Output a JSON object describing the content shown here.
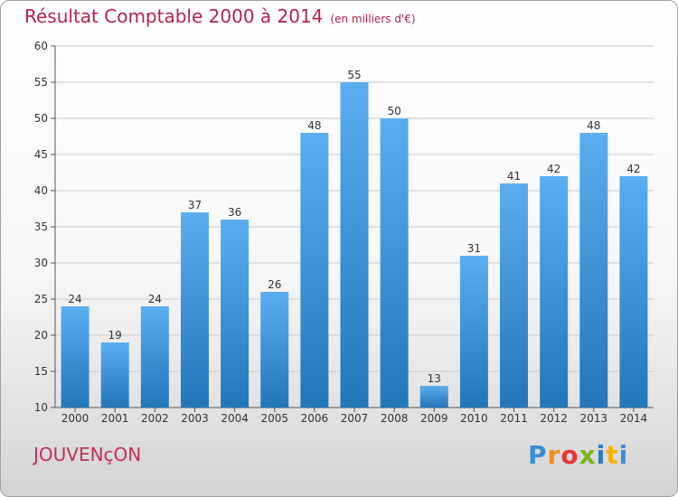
{
  "header": {
    "title": "Résultat Comptable 2000 à 2014",
    "unit": "(en milliers d'€)"
  },
  "commune": "JOUVENçON",
  "logo": {
    "letters": [
      "P",
      "r",
      "o",
      "x",
      "i",
      "t",
      "i"
    ]
  },
  "colors": {
    "title": "#b5224c",
    "bar_top": "#5aaef0",
    "bar_bottom": "#2277b8",
    "grid": "#c8c8c8"
  },
  "chart_data": {
    "type": "bar",
    "title": "Résultat Comptable 2000 à 2014",
    "xlabel": "",
    "ylabel": "",
    "categories": [
      "2000",
      "2001",
      "2002",
      "2003",
      "2004",
      "2005",
      "2006",
      "2007",
      "2008",
      "2009",
      "2010",
      "2011",
      "2012",
      "2013",
      "2014"
    ],
    "values": [
      24,
      19,
      24,
      37,
      36,
      26,
      48,
      55,
      50,
      13,
      31,
      41,
      42,
      48,
      42
    ],
    "ylim": [
      10,
      60
    ],
    "yticks": [
      10,
      15,
      20,
      25,
      30,
      35,
      40,
      45,
      50,
      55,
      60
    ],
    "grid": true
  }
}
